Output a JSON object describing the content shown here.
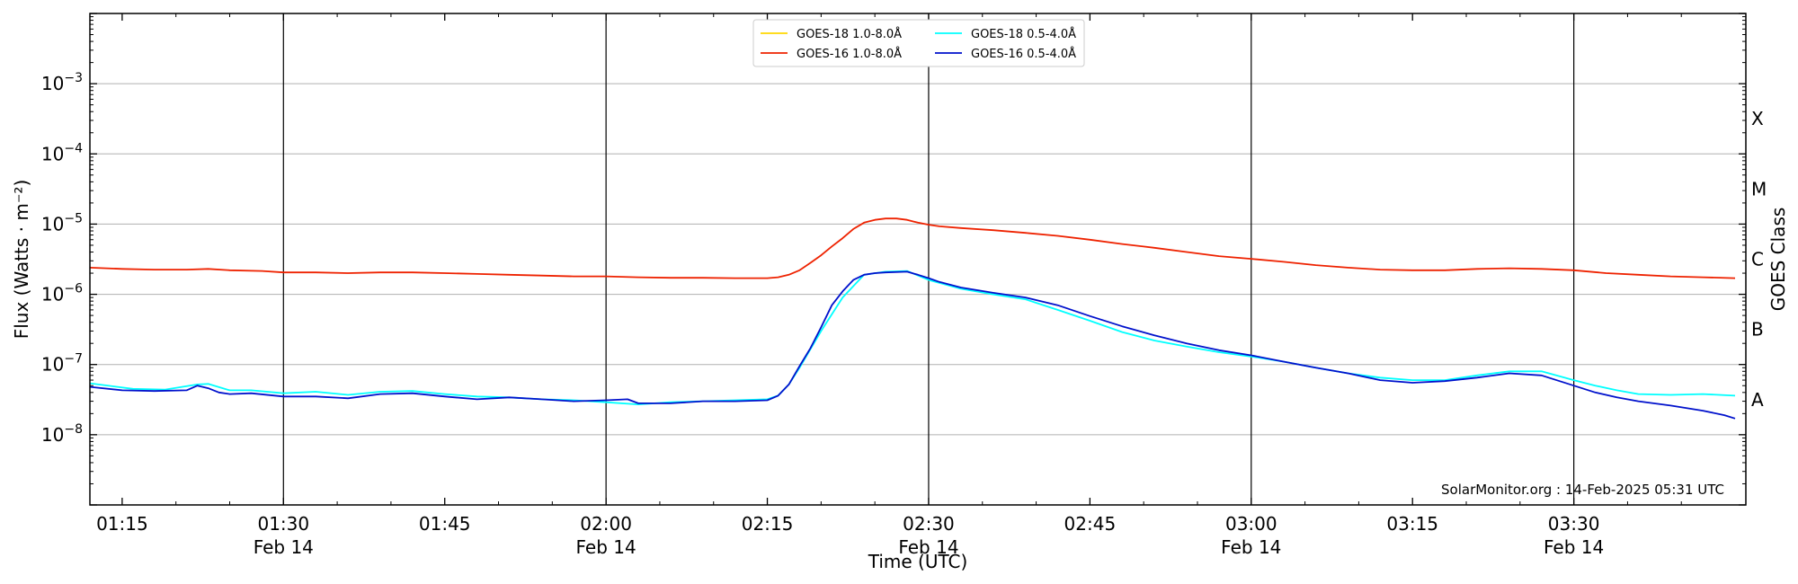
{
  "chart_data": {
    "type": "line",
    "xlabel": "Time (UTC)",
    "ylabel": "Flux (Watts · m⁻²)",
    "y2label": "GOES Class",
    "yscale": "log",
    "ylim": [
      1e-09,
      0.01
    ],
    "xlim": [
      "01:12",
      "03:46"
    ],
    "grid": "horizontal",
    "legend_placement": "top-center",
    "credit": "SolarMonitor.org : 14-Feb-2025 05:31 UTC",
    "y_ticks": [
      {
        "value": 1e-08,
        "base": "10",
        "exp": "−8"
      },
      {
        "value": 1e-07,
        "base": "10",
        "exp": "−7"
      },
      {
        "value": 1e-06,
        "base": "10",
        "exp": "−6"
      },
      {
        "value": 1e-05,
        "base": "10",
        "exp": "−5"
      },
      {
        "value": 0.0001,
        "base": "10",
        "exp": "−4"
      },
      {
        "value": 0.001,
        "base": "10",
        "exp": "−3"
      }
    ],
    "x_ticks": [
      {
        "time": "01:15",
        "label": "01:15",
        "date": ""
      },
      {
        "time": "01:30",
        "label": "01:30",
        "date": "Feb 14"
      },
      {
        "time": "01:45",
        "label": "01:45",
        "date": ""
      },
      {
        "time": "02:00",
        "label": "02:00",
        "date": "Feb 14"
      },
      {
        "time": "02:15",
        "label": "02:15",
        "date": ""
      },
      {
        "time": "02:30",
        "label": "02:30",
        "date": "Feb 14"
      },
      {
        "time": "02:45",
        "label": "02:45",
        "date": ""
      },
      {
        "time": "03:00",
        "label": "03:00",
        "date": "Feb 14"
      },
      {
        "time": "03:15",
        "label": "03:15",
        "date": ""
      },
      {
        "time": "03:30",
        "label": "03:30",
        "date": "Feb 14"
      }
    ],
    "classes": [
      {
        "label": "A",
        "value": 1e-08
      },
      {
        "label": "B",
        "value": 1e-07
      },
      {
        "label": "C",
        "value": 1e-06
      },
      {
        "label": "M",
        "value": 1e-05
      },
      {
        "label": "X",
        "value": 0.0001
      }
    ],
    "series": [
      {
        "name": "GOES-18 1.0-8.0Å",
        "color": "#ffd700",
        "times": [],
        "values": []
      },
      {
        "name": "GOES-18 0.5-4.0Å",
        "color": "#00ffff",
        "times": [
          "01:12",
          "01:16",
          "01:19",
          "01:22",
          "01:23",
          "01:25",
          "01:27",
          "01:30",
          "01:33",
          "01:36",
          "01:39",
          "01:42",
          "01:45",
          "01:48",
          "01:51",
          "01:54",
          "01:57",
          "02:00",
          "02:03",
          "02:06",
          "02:09",
          "02:12",
          "02:15",
          "02:16",
          "02:17",
          "02:18",
          "02:20",
          "02:22",
          "02:24",
          "02:26",
          "02:28",
          "02:30",
          "02:33",
          "02:36",
          "02:39",
          "02:42",
          "02:45",
          "02:48",
          "02:51",
          "02:54",
          "02:57",
          "03:00",
          "03:03",
          "03:06",
          "03:09",
          "03:12",
          "03:15",
          "03:18",
          "03:21",
          "03:24",
          "03:27",
          "03:30",
          "03:32",
          "03:34",
          "03:36",
          "03:39",
          "03:42",
          "03:45"
        ],
        "values": [
          5.4e-08,
          4.5e-08,
          4.4e-08,
          5.2e-08,
          5.3e-08,
          4.3e-08,
          4.3e-08,
          3.9e-08,
          4.1e-08,
          3.7e-08,
          4.1e-08,
          4.2e-08,
          3.8e-08,
          3.5e-08,
          3.4e-08,
          3.2e-08,
          3.1e-08,
          2.9e-08,
          2.7e-08,
          2.9e-08,
          3e-08,
          3.1e-08,
          3.2e-08,
          3.6e-08,
          5.2e-08,
          9e-08,
          3e-07,
          9e-07,
          1.9e-06,
          2.1e-06,
          2.15e-06,
          1.6e-06,
          1.2e-06,
          1e-06,
          8.5e-07,
          6e-07,
          4.2e-07,
          2.9e-07,
          2.2e-07,
          1.8e-07,
          1.5e-07,
          1.3e-07,
          1.1e-07,
          9e-08,
          7.5e-08,
          6.5e-08,
          6e-08,
          6e-08,
          7e-08,
          8e-08,
          8e-08,
          6e-08,
          5e-08,
          4.3e-08,
          3.8e-08,
          3.7e-08,
          3.8e-08,
          3.6e-08
        ]
      },
      {
        "name": "GOES-16 1.0-8.0Å",
        "color": "#ee2200",
        "times": [
          "01:12",
          "01:15",
          "01:18",
          "01:21",
          "01:23",
          "01:25",
          "01:28",
          "01:30",
          "01:33",
          "01:36",
          "01:39",
          "01:42",
          "01:45",
          "01:48",
          "01:51",
          "01:54",
          "01:57",
          "02:00",
          "02:03",
          "02:06",
          "02:09",
          "02:12",
          "02:15",
          "02:16",
          "02:17",
          "02:18",
          "02:19",
          "02:20",
          "02:21",
          "02:22",
          "02:23",
          "02:24",
          "02:25",
          "02:26",
          "02:27",
          "02:28",
          "02:29",
          "02:30",
          "02:31",
          "02:33",
          "02:36",
          "02:39",
          "02:42",
          "02:45",
          "02:48",
          "02:51",
          "02:54",
          "02:57",
          "03:00",
          "03:03",
          "03:06",
          "03:09",
          "03:12",
          "03:15",
          "03:18",
          "03:21",
          "03:24",
          "03:27",
          "03:30",
          "03:33",
          "03:36",
          "03:39",
          "03:42",
          "03:45"
        ],
        "values": [
          2.4e-06,
          2.3e-06,
          2.25e-06,
          2.25e-06,
          2.3e-06,
          2.2e-06,
          2.15e-06,
          2.05e-06,
          2.05e-06,
          2e-06,
          2.05e-06,
          2.05e-06,
          2e-06,
          1.95e-06,
          1.9e-06,
          1.85e-06,
          1.8e-06,
          1.8e-06,
          1.75e-06,
          1.72e-06,
          1.72e-06,
          1.7e-06,
          1.7e-06,
          1.75e-06,
          1.9e-06,
          2.2e-06,
          2.8e-06,
          3.6e-06,
          4.8e-06,
          6.3e-06,
          8.5e-06,
          1.05e-05,
          1.15e-05,
          1.2e-05,
          1.2e-05,
          1.15e-05,
          1.05e-05,
          9.8e-06,
          9.3e-06,
          8.8e-06,
          8.2e-06,
          7.5e-06,
          6.8e-06,
          6e-06,
          5.2e-06,
          4.6e-06,
          4e-06,
          3.5e-06,
          3.2e-06,
          2.9e-06,
          2.6e-06,
          2.4e-06,
          2.25e-06,
          2.2e-06,
          2.2e-06,
          2.3e-06,
          2.35e-06,
          2.3e-06,
          2.2e-06,
          2e-06,
          1.9e-06,
          1.8e-06,
          1.75e-06,
          1.7e-06
        ]
      },
      {
        "name": "GOES-16 0.5-4.0Å",
        "color": "#0011cc",
        "times": [
          "01:12",
          "01:15",
          "01:18",
          "01:21",
          "01:22",
          "01:23",
          "01:24",
          "01:25",
          "01:27",
          "01:30",
          "01:33",
          "01:36",
          "01:39",
          "01:42",
          "01:45",
          "01:48",
          "01:51",
          "01:54",
          "01:57",
          "02:00",
          "02:02",
          "02:03",
          "02:06",
          "02:09",
          "02:12",
          "02:15",
          "02:16",
          "02:17",
          "02:18",
          "02:19",
          "02:20",
          "02:21",
          "02:22",
          "02:23",
          "02:24",
          "02:25",
          "02:26",
          "02:28",
          "02:29",
          "02:30",
          "02:31",
          "02:33",
          "02:36",
          "02:39",
          "02:42",
          "02:45",
          "02:48",
          "02:51",
          "02:54",
          "02:57",
          "03:00",
          "03:03",
          "03:06",
          "03:09",
          "03:12",
          "03:15",
          "03:18",
          "03:21",
          "03:24",
          "03:27",
          "03:30",
          "03:32",
          "03:34",
          "03:36",
          "03:39",
          "03:42",
          "03:44",
          "03:45"
        ],
        "values": [
          4.8e-08,
          4.3e-08,
          4.2e-08,
          4.3e-08,
          5e-08,
          4.6e-08,
          4e-08,
          3.8e-08,
          3.9e-08,
          3.5e-08,
          3.5e-08,
          3.3e-08,
          3.8e-08,
          3.9e-08,
          3.5e-08,
          3.2e-08,
          3.4e-08,
          3.2e-08,
          3e-08,
          3.1e-08,
          3.2e-08,
          2.8e-08,
          2.8e-08,
          3e-08,
          3e-08,
          3.1e-08,
          3.6e-08,
          5.2e-08,
          9.5e-08,
          1.7e-07,
          3.4e-07,
          7e-07,
          1.1e-06,
          1.6e-06,
          1.9e-06,
          2e-06,
          2.05e-06,
          2.1e-06,
          1.9e-06,
          1.7e-06,
          1.5e-06,
          1.25e-06,
          1.05e-06,
          9e-07,
          7e-07,
          4.9e-07,
          3.5e-07,
          2.6e-07,
          2e-07,
          1.6e-07,
          1.35e-07,
          1.1e-07,
          9e-08,
          7.5e-08,
          6e-08,
          5.5e-08,
          5.8e-08,
          6.5e-08,
          7.5e-08,
          7e-08,
          5e-08,
          4e-08,
          3.4e-08,
          3e-08,
          2.6e-08,
          2.2e-08,
          1.9e-08,
          1.7e-08
        ]
      }
    ]
  }
}
